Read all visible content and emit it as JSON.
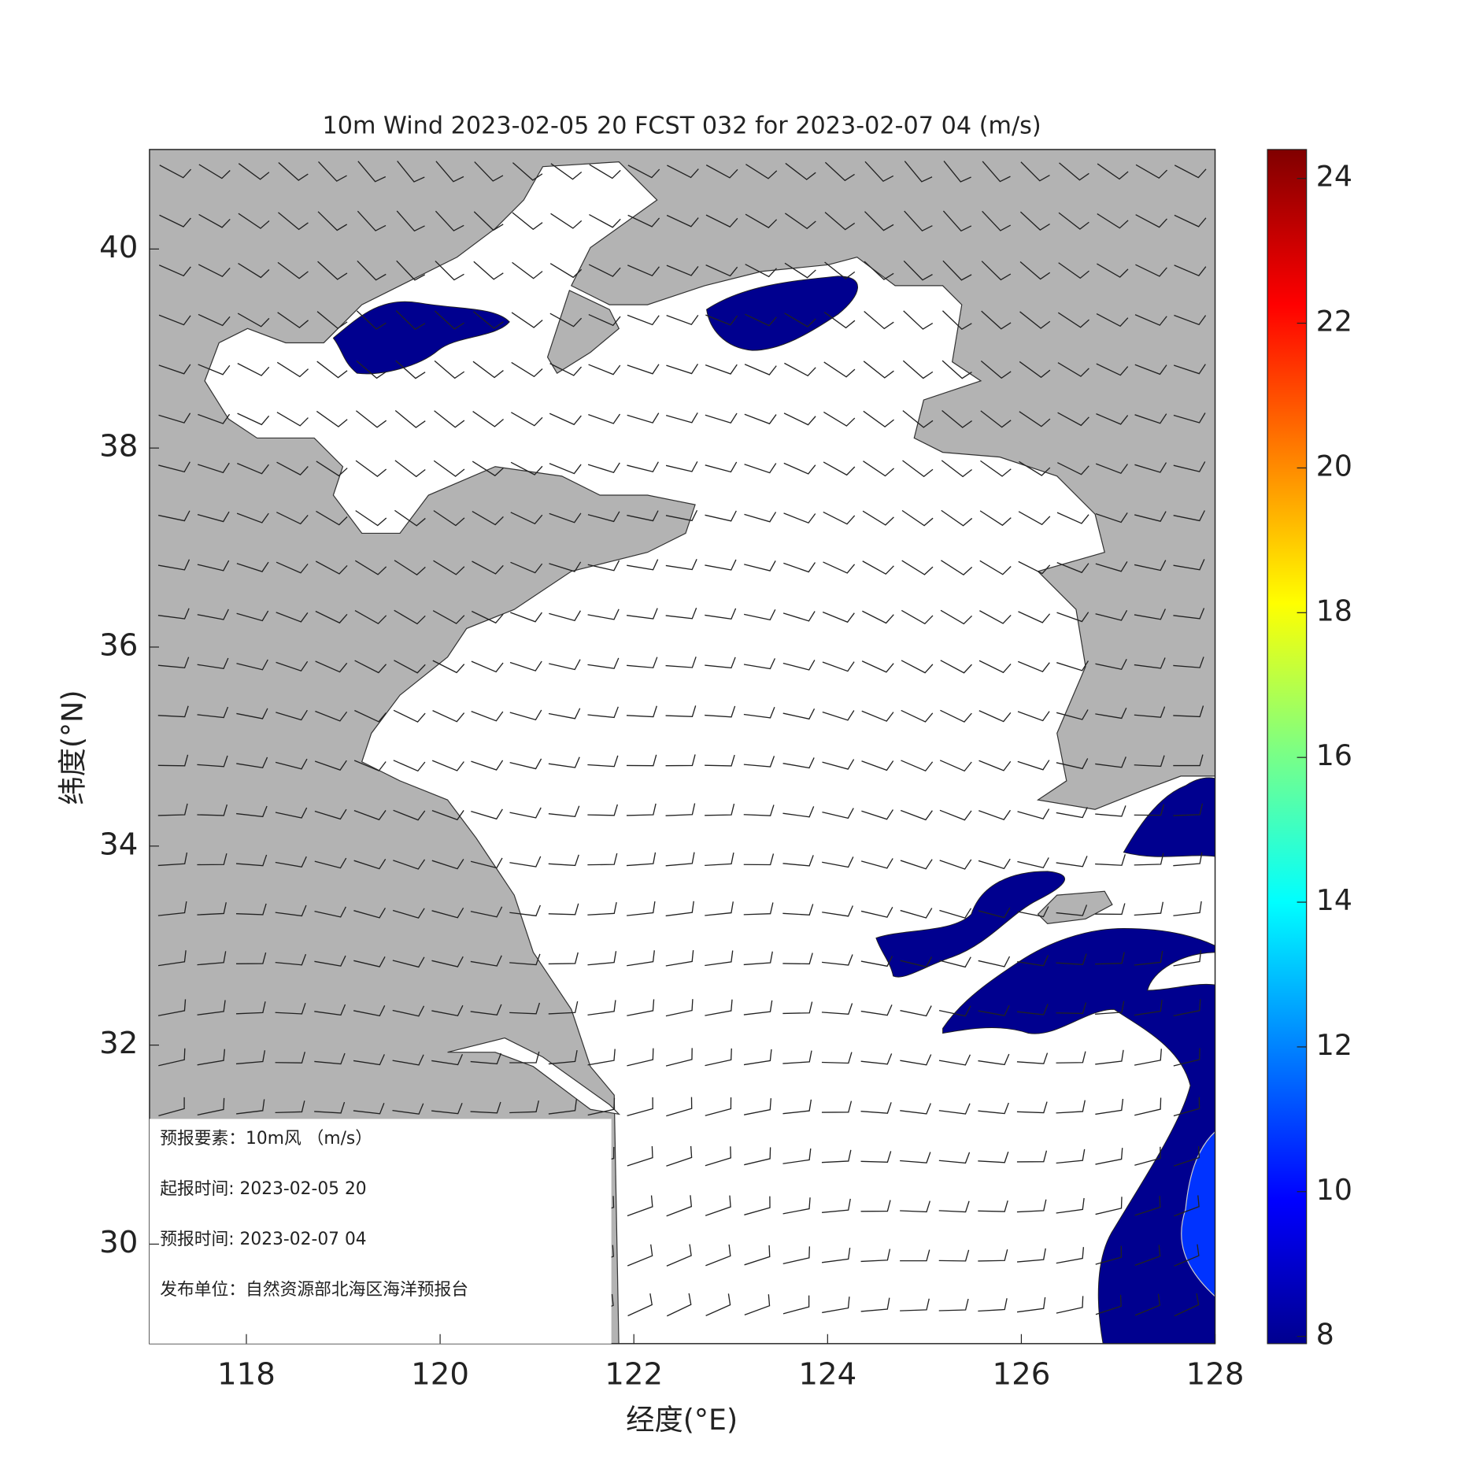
{
  "chart_data": {
    "type": "map",
    "title": "10m Wind 2023-02-05 20 FCST 032 for 2023-02-07 04 (m/s)",
    "x_label": "经度(°E)",
    "y_label": "纬度(°N)",
    "xlim": [
      117,
      128
    ],
    "ylim": [
      29,
      41
    ],
    "xticks": [
      118,
      120,
      122,
      124,
      126,
      128
    ],
    "yticks": [
      30,
      32,
      34,
      36,
      38,
      40
    ],
    "colorbar": {
      "lim": [
        7.9,
        24.4
      ],
      "ticks": [
        8,
        10,
        12,
        14,
        16,
        18,
        20,
        22,
        24
      ]
    },
    "info": [
      "预报要素：10m风 （m/s）",
      "起报时间: 2023-02-05 20",
      "预报时间: 2023-02-07 04",
      "发布单位：自然资源部北海区海洋预报台"
    ]
  }
}
